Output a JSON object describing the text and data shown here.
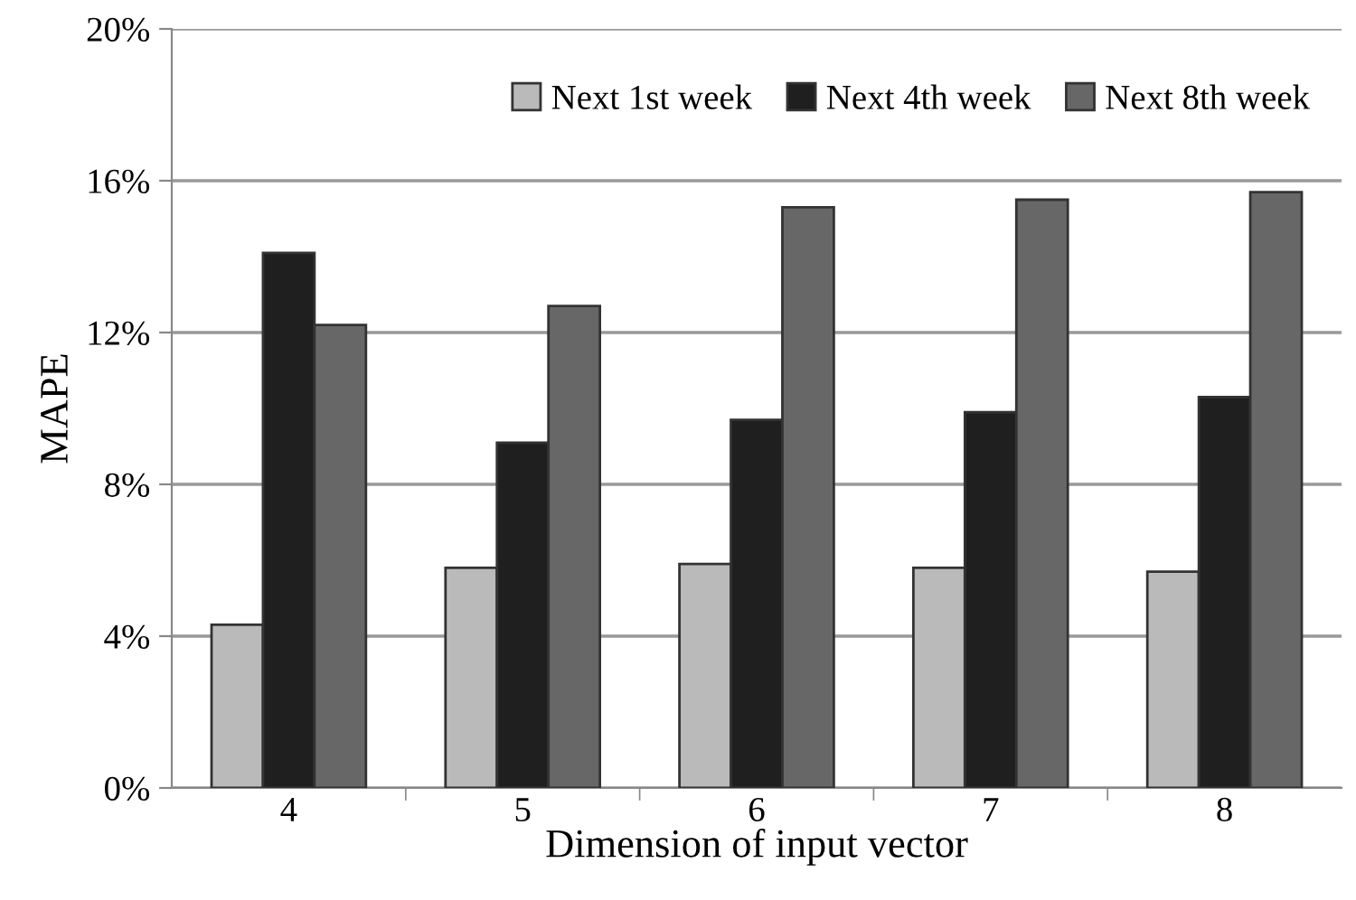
{
  "chart_data": {
    "type": "bar",
    "xlabel": "Dimension of input vector",
    "ylabel": "MAPE",
    "categories": [
      "4",
      "5",
      "6",
      "7",
      "8"
    ],
    "series": [
      {
        "name": "Next 1st week",
        "color": "#bababa",
        "values": [
          4.3,
          5.8,
          5.9,
          5.8,
          5.7
        ]
      },
      {
        "name": "Next 4th week",
        "color": "#1f1f1f",
        "values": [
          14.1,
          9.1,
          9.7,
          9.9,
          10.3
        ]
      },
      {
        "name": "Next 8th week",
        "color": "#676767",
        "values": [
          12.2,
          12.7,
          15.3,
          15.5,
          15.7
        ]
      }
    ],
    "ylim": [
      0,
      20
    ],
    "yticks": [
      {
        "value": 0,
        "label": "0%"
      },
      {
        "value": 4,
        "label": "4%"
      },
      {
        "value": 8,
        "label": "8%"
      },
      {
        "value": 12,
        "label": "12%"
      },
      {
        "value": 16,
        "label": "16%"
      },
      {
        "value": 20,
        "label": "20%"
      }
    ],
    "grid": "y",
    "legend": "top right"
  }
}
